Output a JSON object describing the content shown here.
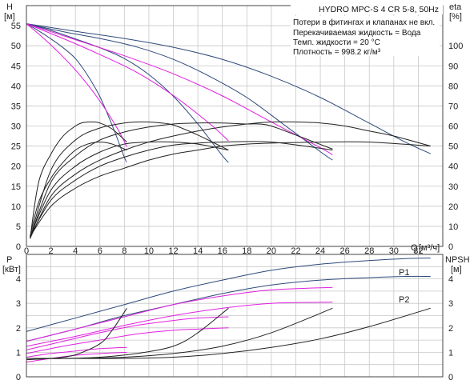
{
  "chart_data": [
    {
      "type": "line",
      "title": "HYDRO MPC-S 4 CR 5-8, 50Hz",
      "xlabel": "Q",
      "xunit": "[м³/ч]",
      "ylabel": "H",
      "yunit": "[м]",
      "y2label": "eta",
      "y2unit": "[%]",
      "xlim": [
        0,
        34
      ],
      "ylim": [
        0,
        60
      ],
      "y2lim": [
        0,
        120
      ],
      "grid": true,
      "x_ticks": [
        "0",
        "2",
        "4",
        "6",
        "8",
        "10",
        "12",
        "14",
        "16",
        "18",
        "20",
        "22",
        "24",
        "26",
        "28",
        "30",
        "32"
      ],
      "y_ticks": [
        "0",
        "5",
        "10",
        "15",
        "20",
        "25",
        "30",
        "35",
        "40",
        "45",
        "50",
        "55"
      ],
      "y2_ticks": [
        "0",
        "10",
        "20",
        "30",
        "40",
        "50",
        "60",
        "70",
        "80",
        "90",
        "100"
      ],
      "notes": [
        "Потери в фитингах и клапанах не вкл.",
        "Перекачиваемая жидкость = Вода",
        "Темп. жидкости = 20 °C",
        "Плотность = 998.2 кг/м³"
      ],
      "colors": {
        "head": "#2e4a7a",
        "eta": "#222222",
        "reduced": "#e020e0"
      },
      "series": [
        {
          "group": "head",
          "x": [
            0,
            4,
            8,
            12,
            16,
            20,
            24,
            28,
            31,
            33
          ],
          "y": [
            55.5,
            53.6,
            51.8,
            49.6,
            46.6,
            42.4,
            37.1,
            30.7,
            25.9,
            23.1
          ]
        },
        {
          "group": "head",
          "x": [
            0,
            3,
            6,
            9,
            12,
            15,
            18,
            21,
            24,
            25
          ],
          "y": [
            55.5,
            53.5,
            51.8,
            49.7,
            46.6,
            42.3,
            37.1,
            30.4,
            23.6,
            21.5
          ]
        },
        {
          "group": "head",
          "x": [
            0,
            2,
            4,
            6,
            8,
            10,
            12,
            14,
            16,
            16.5
          ],
          "y": [
            55.5,
            53.8,
            51.7,
            49.5,
            46.8,
            42.8,
            37.4,
            30.5,
            22.6,
            20.9
          ]
        },
        {
          "group": "head",
          "x": [
            0,
            1,
            2,
            3,
            4,
            5,
            6,
            7,
            8,
            8.2
          ],
          "y": [
            55.5,
            53.7,
            51.7,
            49.5,
            46.8,
            42.6,
            37.3,
            30.2,
            22.2,
            21.0
          ]
        },
        {
          "group": "reduced",
          "x": [
            0,
            4,
            8,
            12,
            16,
            20,
            24,
            25
          ],
          "y": [
            55.5,
            51.5,
            47.5,
            43.0,
            37.5,
            31.0,
            24.6,
            22.8
          ]
        },
        {
          "group": "reduced",
          "x": [
            0,
            3,
            6,
            9,
            12,
            15,
            16.5
          ],
          "y": [
            55.5,
            51.8,
            47.8,
            43.4,
            37.6,
            30.5,
            26.3
          ]
        },
        {
          "group": "reduced",
          "x": [
            0,
            1.5,
            3,
            4.5,
            6,
            7.5,
            8.2
          ],
          "y": [
            55.5,
            51.6,
            47.2,
            42.2,
            36.2,
            29.0,
            24.8
          ]
        },
        {
          "group": "eta",
          "x": [
            0.3,
            2,
            4,
            6,
            8,
            10,
            12,
            14,
            16,
            18,
            20,
            22,
            24,
            26,
            28,
            30,
            33
          ],
          "y": [
            4,
            25,
            36,
            43,
            48,
            52,
            55,
            57.5,
            59.5,
            61,
            62,
            62,
            61.5,
            60,
            57.5,
            55,
            50
          ]
        },
        {
          "group": "eta",
          "x": [
            0.3,
            2,
            4,
            6,
            8,
            10,
            12,
            14,
            16,
            18,
            19,
            20,
            22,
            25
          ],
          "y": [
            4,
            32,
            45,
            53,
            57,
            59.5,
            61,
            61.5,
            61.5,
            61,
            61,
            60,
            55.5,
            48.5
          ]
        },
        {
          "group": "eta",
          "x": [
            0.3,
            2,
            4,
            6,
            8,
            9,
            10,
            11,
            12,
            14,
            16.5
          ],
          "y": [
            4,
            38,
            53,
            59,
            61.5,
            62,
            62,
            61.5,
            60.5,
            55.5,
            48
          ]
        },
        {
          "group": "eta",
          "x": [
            0.3,
            1,
            2,
            3,
            4,
            4.5,
            5,
            5.5,
            6,
            7,
            8.2
          ],
          "y": [
            4,
            32,
            46,
            55,
            60,
            61.5,
            62,
            62,
            61.5,
            58.5,
            52
          ]
        },
        {
          "group": "eta",
          "x": [
            0.3,
            2,
            4,
            6,
            8,
            10,
            12,
            14,
            16,
            18,
            20,
            24,
            28,
            33
          ],
          "y": [
            5,
            20,
            29,
            35,
            39,
            43,
            46,
            48,
            50,
            51,
            51.5,
            52,
            52,
            50
          ]
        },
        {
          "group": "eta",
          "x": [
            0.3,
            2,
            4,
            6,
            8,
            10,
            12,
            14,
            16,
            20,
            25
          ],
          "y": [
            5,
            23,
            33,
            40,
            44.5,
            48,
            50.5,
            51.5,
            52,
            52,
            48
          ]
        },
        {
          "group": "eta",
          "x": [
            0.3,
            2,
            4,
            6,
            8,
            10,
            12,
            14,
            16.5
          ],
          "y": [
            5,
            28,
            40,
            47,
            51,
            52,
            52,
            51,
            48
          ]
        },
        {
          "group": "eta",
          "x": [
            0.3,
            1,
            2,
            3,
            4,
            5,
            6,
            7,
            8.2
          ],
          "y": [
            5,
            22,
            34,
            42,
            48,
            51,
            52,
            51,
            48
          ]
        }
      ]
    },
    {
      "type": "line",
      "xlabel": "Q",
      "ylabel": "P",
      "yunit": "[кВт]",
      "y2label": "NPSH",
      "y2unit": "[м]",
      "xlim": [
        0,
        34
      ],
      "ylim": [
        0,
        5
      ],
      "y2lim": [
        0,
        5
      ],
      "grid": true,
      "y_ticks": [
        "0",
        "1",
        "2",
        "3",
        "4"
      ],
      "y2_ticks": [
        "0",
        "1",
        "2",
        "3",
        "4"
      ],
      "labels": [
        "P1",
        "P2"
      ],
      "colors": {
        "P1": "#2e4a7a",
        "P2": "#2e4a7a",
        "reduced": "#e020e0",
        "npsh": "#222222"
      },
      "series": [
        {
          "name": "P1",
          "group": "P1",
          "x": [
            0,
            4,
            8,
            12,
            16,
            20,
            24,
            28,
            31,
            33
          ],
          "y": [
            1.85,
            2.4,
            2.95,
            3.5,
            3.95,
            4.35,
            4.6,
            4.75,
            4.83,
            4.85
          ]
        },
        {
          "name": "P2",
          "group": "P2",
          "x": [
            0,
            4,
            8,
            12,
            16,
            20,
            24,
            28,
            31,
            33
          ],
          "y": [
            1.45,
            1.95,
            2.5,
            2.95,
            3.4,
            3.75,
            3.95,
            4.05,
            4.1,
            4.1
          ]
        },
        {
          "group": "reduced",
          "x": [
            0,
            4,
            8,
            12,
            16,
            20,
            25
          ],
          "y": [
            1.45,
            1.95,
            2.45,
            2.95,
            3.3,
            3.55,
            3.65
          ]
        },
        {
          "group": "reduced",
          "x": [
            0,
            4,
            8,
            12,
            16,
            20,
            25
          ],
          "y": [
            1.25,
            1.65,
            2.1,
            2.5,
            2.8,
            3.0,
            3.05
          ]
        },
        {
          "group": "reduced",
          "x": [
            0,
            3,
            6,
            9,
            12,
            14,
            16.5
          ],
          "y": [
            1.1,
            1.45,
            1.8,
            2.1,
            2.3,
            2.4,
            2.45
          ]
        },
        {
          "group": "reduced",
          "x": [
            0,
            3,
            6,
            9,
            12,
            14,
            16.5
          ],
          "y": [
            0.95,
            1.25,
            1.5,
            1.75,
            1.9,
            1.95,
            2.0
          ]
        },
        {
          "group": "reduced",
          "x": [
            0,
            2,
            4,
            6,
            8.2
          ],
          "y": [
            0.8,
            0.95,
            1.05,
            1.15,
            1.2
          ]
        },
        {
          "group": "reduced",
          "x": [
            0,
            2,
            4,
            6,
            8.2
          ],
          "y": [
            0.6,
            0.75,
            0.88,
            0.95,
            1.0
          ]
        },
        {
          "group": "npsh",
          "x": [
            0,
            4,
            8,
            12,
            16,
            20,
            24,
            28,
            33
          ],
          "y": [
            0.75,
            0.75,
            0.75,
            0.8,
            0.95,
            1.2,
            1.55,
            2.05,
            2.8
          ]
        },
        {
          "group": "npsh",
          "x": [
            0,
            4,
            8,
            12,
            16,
            20,
            25
          ],
          "y": [
            0.75,
            0.75,
            0.8,
            0.95,
            1.25,
            1.8,
            2.8
          ]
        },
        {
          "group": "npsh",
          "x": [
            0,
            3,
            6,
            9,
            12,
            14,
            16.5
          ],
          "y": [
            0.75,
            0.75,
            0.8,
            0.95,
            1.25,
            1.8,
            2.8
          ]
        },
        {
          "group": "npsh",
          "x": [
            0,
            2,
            4,
            6,
            7,
            8.2
          ],
          "y": [
            0.7,
            0.75,
            0.9,
            1.35,
            1.9,
            2.8
          ]
        }
      ]
    }
  ]
}
